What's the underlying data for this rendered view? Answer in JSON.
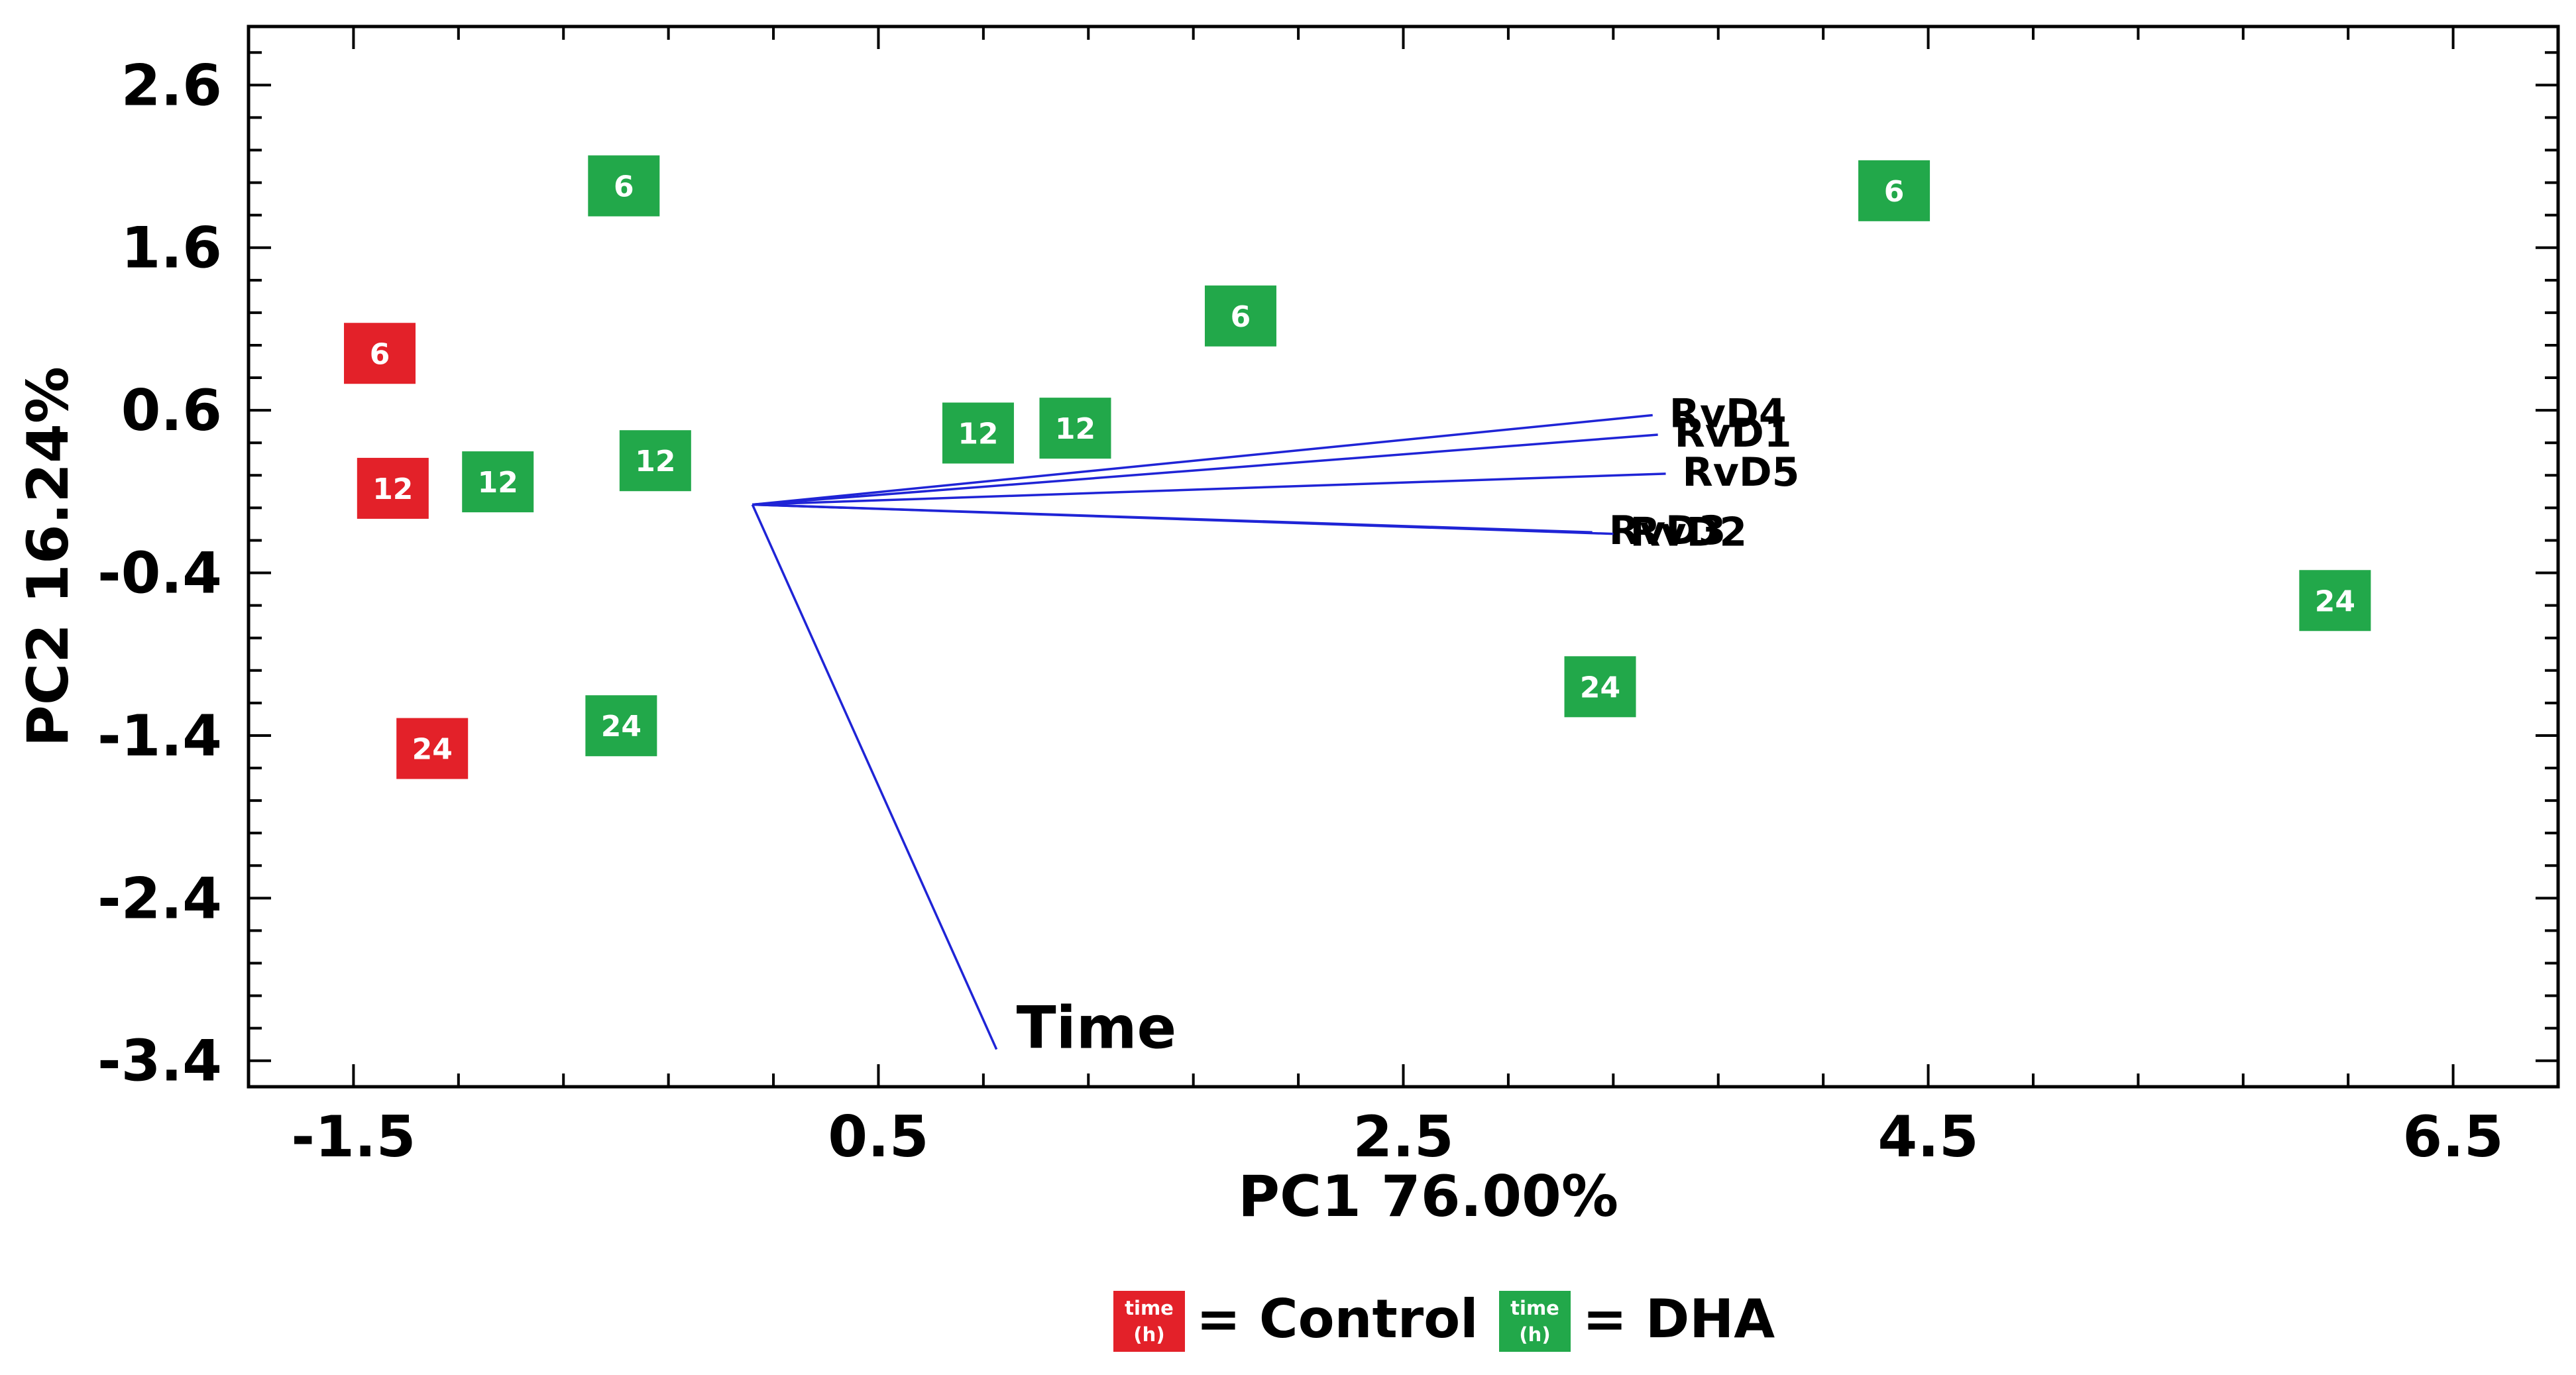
{
  "chart_data": {
    "type": "scatter",
    "xlabel": "PC1 76.00%",
    "ylabel": "PC2 16.24%",
    "xlim": [
      -1.9,
      6.9
    ],
    "ylim": [
      -3.56,
      2.96
    ],
    "x_ticks": [
      -1.5,
      0.5,
      2.5,
      4.5,
      6.5
    ],
    "x_tick_labels": [
      "-1.5",
      "0.5",
      "2.5",
      "4.5",
      "6.5"
    ],
    "y_ticks": [
      2.6,
      1.6,
      0.6,
      -0.4,
      -1.4,
      -2.4,
      -3.4
    ],
    "y_tick_labels": [
      "2.6",
      "1.6",
      "0.6",
      "-0.4",
      "-1.4",
      "-2.4",
      "-3.4"
    ],
    "colors": {
      "control": "#e32129",
      "dha": "#22a84a",
      "vector": "#1f24d6"
    },
    "series": [
      {
        "name": "Control",
        "color": "#e32129",
        "points": [
          {
            "x": -1.4,
            "y": 0.95,
            "label": "6"
          },
          {
            "x": -1.35,
            "y": 0.12,
            "label": "12"
          },
          {
            "x": -1.2,
            "y": -1.48,
            "label": "24"
          }
        ]
      },
      {
        "name": "DHA",
        "color": "#22a84a",
        "points": [
          {
            "x": -0.47,
            "y": 1.98,
            "label": "6"
          },
          {
            "x": 1.88,
            "y": 1.18,
            "label": "6"
          },
          {
            "x": 4.37,
            "y": 1.95,
            "label": "6"
          },
          {
            "x": -0.95,
            "y": 0.16,
            "label": "12"
          },
          {
            "x": -0.35,
            "y": 0.29,
            "label": "12"
          },
          {
            "x": 0.88,
            "y": 0.46,
            "label": "12"
          },
          {
            "x": 1.25,
            "y": 0.49,
            "label": "12"
          },
          {
            "x": -0.48,
            "y": -1.34,
            "label": "24"
          },
          {
            "x": 3.25,
            "y": -1.1,
            "label": "24"
          },
          {
            "x": 6.05,
            "y": -0.57,
            "label": "24"
          }
        ]
      }
    ],
    "vectors": [
      {
        "label": "RvD4",
        "x": 3.45,
        "y": 0.57
      },
      {
        "label": "RvD1",
        "x": 3.47,
        "y": 0.45
      },
      {
        "label": "RvD5",
        "x": 3.5,
        "y": 0.21
      },
      {
        "label": "RvD3",
        "x": 3.22,
        "y": -0.15
      },
      {
        "label": "RvD2",
        "x": 3.3,
        "y": -0.16
      },
      {
        "label": "Time",
        "x": 0.95,
        "y": -3.33
      }
    ],
    "vector_origin": {
      "x": 0.02,
      "y": 0.02
    },
    "legend": [
      {
        "icon_text": "time",
        "icon_subtext": "(h)",
        "label": "= Control",
        "color": "#e32129"
      },
      {
        "icon_text": "time",
        "icon_subtext": "(h)",
        "label": "= DHA",
        "color": "#22a84a"
      }
    ],
    "grid": false
  }
}
